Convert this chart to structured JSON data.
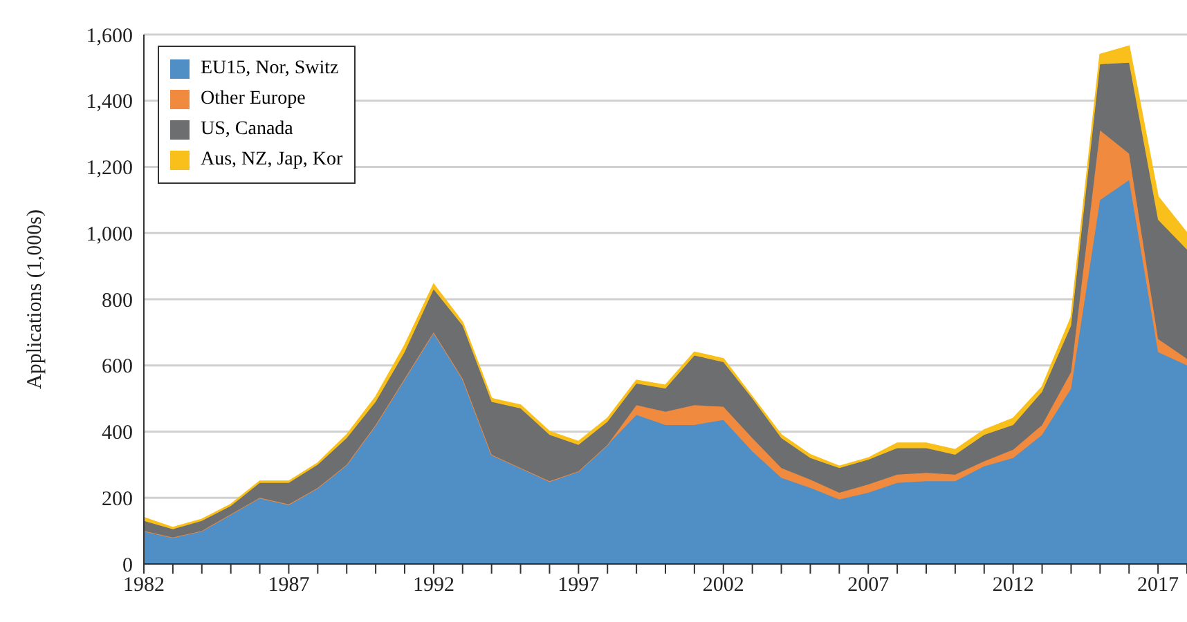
{
  "chart_data": {
    "type": "area",
    "stacked": true,
    "ylabel": "Applications (1,000s)",
    "x": [
      1982,
      1983,
      1984,
      1985,
      1986,
      1987,
      1988,
      1989,
      1990,
      1991,
      1992,
      1993,
      1994,
      1995,
      1996,
      1997,
      1998,
      1999,
      2000,
      2001,
      2002,
      2003,
      2004,
      2005,
      2006,
      2007,
      2008,
      2009,
      2010,
      2011,
      2012,
      2013,
      2014,
      2015,
      2016,
      2017,
      2018
    ],
    "series": [
      {
        "name": "EU15, Nor, Switz",
        "color": "#4f8fc6",
        "values": [
          100,
          80,
          100,
          150,
          200,
          180,
          230,
          300,
          420,
          560,
          700,
          560,
          330,
          290,
          250,
          280,
          360,
          450,
          420,
          420,
          435,
          340,
          260,
          230,
          195,
          215,
          245,
          250,
          250,
          295,
          320,
          390,
          530,
          1100,
          1160,
          640,
          600
        ]
      },
      {
        "name": "Other Europe",
        "color": "#ef8a3f",
        "values": [
          0,
          0,
          0,
          0,
          0,
          0,
          0,
          0,
          0,
          0,
          0,
          0,
          0,
          0,
          0,
          0,
          0,
          30,
          40,
          60,
          40,
          40,
          30,
          25,
          20,
          25,
          25,
          25,
          20,
          15,
          25,
          30,
          50,
          210,
          80,
          40,
          20
        ]
      },
      {
        "name": "US, Canada",
        "color": "#6d6e70",
        "values": [
          30,
          25,
          30,
          25,
          45,
          65,
          70,
          80,
          70,
          80,
          130,
          160,
          160,
          180,
          140,
          80,
          70,
          65,
          70,
          150,
          135,
          120,
          90,
          65,
          75,
          75,
          80,
          75,
          60,
          80,
          75,
          100,
          140,
          200,
          275,
          360,
          330
        ]
      },
      {
        "name": "Aus, NZ, Jap, Kor",
        "color": "#f9bf1a",
        "values": [
          10,
          5,
          5,
          5,
          5,
          5,
          5,
          10,
          15,
          20,
          15,
          10,
          10,
          10,
          10,
          10,
          10,
          10,
          10,
          10,
          10,
          5,
          10,
          10,
          5,
          5,
          15,
          15,
          15,
          15,
          20,
          15,
          25,
          30,
          50,
          70,
          50
        ]
      }
    ],
    "xlim": [
      1982,
      2018
    ],
    "xticks": [
      1982,
      {
        "value": 1983,
        "label": null
      },
      {
        "value": 1984,
        "label": null
      },
      {
        "value": 1985,
        "label": null
      },
      {
        "value": 1986,
        "label": null
      },
      1987,
      {
        "value": 1988,
        "label": null
      },
      {
        "value": 1989,
        "label": null
      },
      {
        "value": 1990,
        "label": null
      },
      {
        "value": 1991,
        "label": null
      },
      1992,
      {
        "value": 1993,
        "label": null
      },
      {
        "value": 1994,
        "label": null
      },
      {
        "value": 1995,
        "label": null
      },
      {
        "value": 1996,
        "label": null
      },
      1997,
      {
        "value": 1998,
        "label": null
      },
      {
        "value": 1999,
        "label": null
      },
      {
        "value": 2000,
        "label": null
      },
      {
        "value": 2001,
        "label": null
      },
      2002,
      {
        "value": 2003,
        "label": null
      },
      {
        "value": 2004,
        "label": null
      },
      {
        "value": 2005,
        "label": null
      },
      {
        "value": 2006,
        "label": null
      },
      2007,
      {
        "value": 2008,
        "label": null
      },
      {
        "value": 2009,
        "label": null
      },
      {
        "value": 2010,
        "label": null
      },
      {
        "value": 2011,
        "label": null
      },
      2012,
      {
        "value": 2013,
        "label": null
      },
      {
        "value": 2014,
        "label": null
      },
      {
        "value": 2015,
        "label": null
      },
      {
        "value": 2016,
        "label": null
      },
      2017,
      {
        "value": 2018,
        "label": null
      }
    ],
    "ylim": [
      0,
      1600
    ],
    "yticks": [
      0,
      200,
      400,
      600,
      800,
      {
        "value": 1000,
        "label": "1,000"
      },
      {
        "value": 1200,
        "label": "1,200"
      },
      {
        "value": 1400,
        "label": "1,400"
      },
      {
        "value": 1600,
        "label": "1,600"
      }
    ],
    "grid": "y",
    "legend": "top left"
  }
}
